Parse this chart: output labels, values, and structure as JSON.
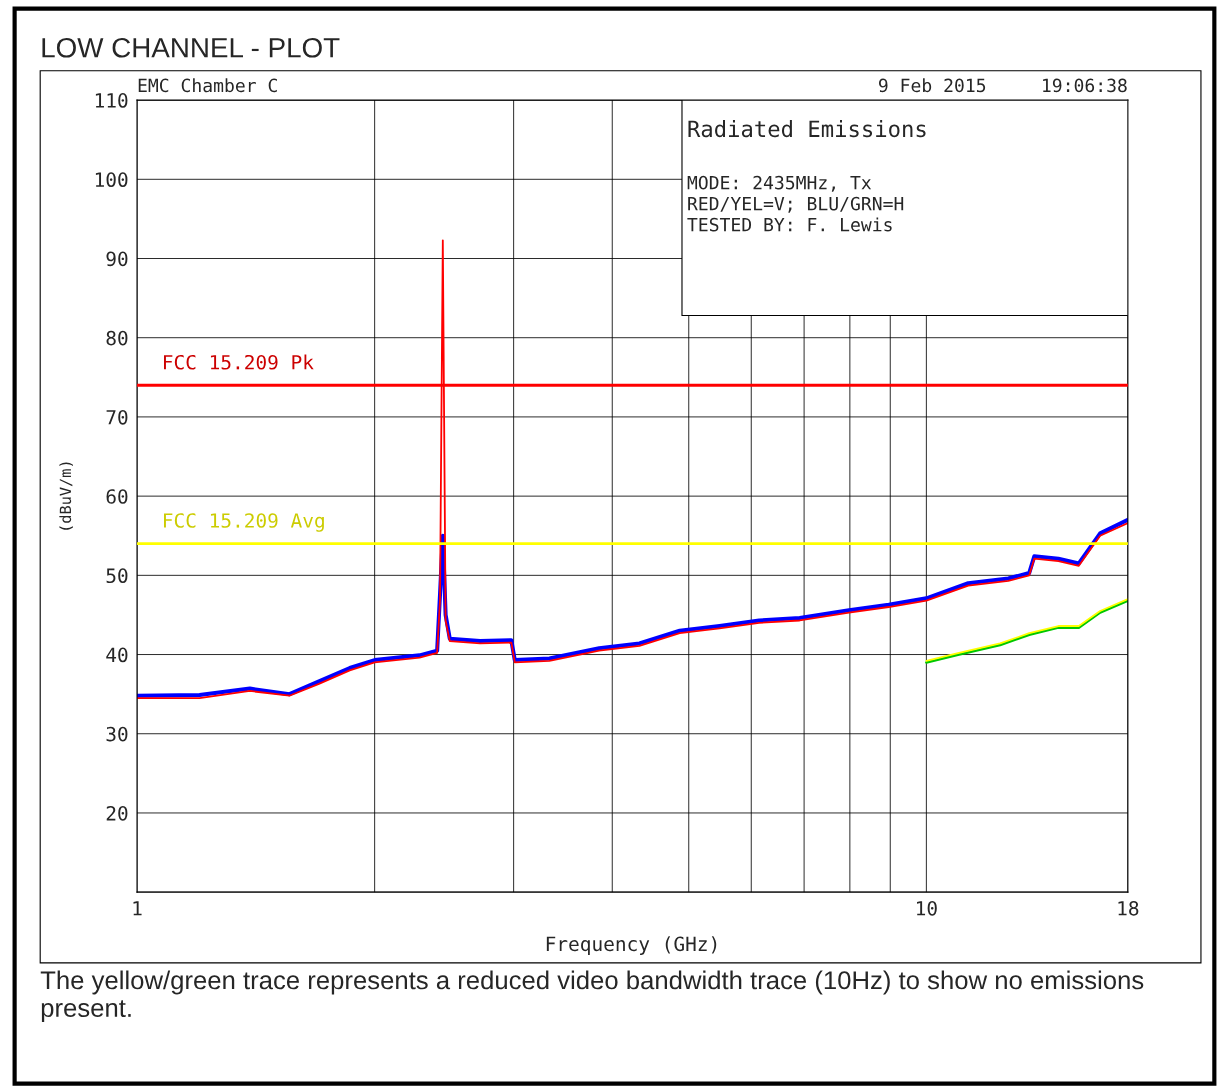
{
  "chart_data": {
    "type": "line",
    "title": "LOW CHANNEL - PLOT",
    "subtitle": "EMC Chamber C",
    "xlabel": "Frequency (GHz)",
    "ylabel": "(dBuV/m)",
    "log": "x",
    "xlim": [
      1,
      18
    ],
    "ylim": [
      10,
      110
    ],
    "xticks": [
      1,
      {
        "value": 2,
        "label": null
      },
      {
        "value": 3,
        "label": null
      },
      {
        "value": 4,
        "label": null
      },
      {
        "value": 5,
        "label": null
      },
      {
        "value": 6,
        "label": null
      },
      {
        "value": 7,
        "label": null
      },
      {
        "value": 8,
        "label": null
      },
      {
        "value": 9,
        "label": null
      },
      10,
      18
    ],
    "yticks": [
      {
        "value": 10,
        "label": null
      },
      20,
      30,
      40,
      50,
      60,
      70,
      80,
      90,
      100,
      110
    ],
    "grid": true,
    "series": [
      {
        "color": "#0000ff",
        "x": [
          1,
          1.2,
          1.39,
          1.56,
          1.7,
          1.86,
          2.0,
          2.28,
          2.4,
          2.42,
          2.44,
          2.46,
          2.49,
          2.72,
          2.98,
          3.01,
          3.33,
          3.85,
          4.33,
          4.87,
          5.47,
          6.14,
          6.91,
          7.98,
          8.96,
          10,
          11.3,
          12.7,
          13.5,
          13.7,
          14.7,
          15.6,
          16.6,
          18
        ],
        "values": [
          34.8,
          34.9,
          35.7,
          35.0,
          36.6,
          38.3,
          39.3,
          39.9,
          40.5,
          47.5,
          55.0,
          45.0,
          42.0,
          41.7,
          41.8,
          39.3,
          39.5,
          40.8,
          41.4,
          43.0,
          43.6,
          44.3,
          44.6,
          45.6,
          46.3,
          47.1,
          49.0,
          49.6,
          50.3,
          52.4,
          52.1,
          51.5,
          55.3,
          57.0
        ]
      },
      {
        "color": "#ff0000",
        "x": [
          1,
          1.2,
          1.39,
          1.56,
          1.7,
          1.86,
          2.0,
          2.28,
          2.4,
          2.42,
          2.44,
          2.46,
          2.49,
          2.72,
          2.98,
          3.01,
          3.33,
          3.85,
          4.33,
          4.87,
          5.47,
          6.14,
          6.91,
          7.98,
          8.96,
          10,
          11.3,
          12.7,
          13.5,
          13.7,
          14.7,
          15.6,
          16.6,
          18
        ],
        "values": [
          34.5,
          34.5,
          35.4,
          34.8,
          36.3,
          38.0,
          39.0,
          39.6,
          40.2,
          46.8,
          92.3,
          44.3,
          41.7,
          41.4,
          41.5,
          39.0,
          39.2,
          40.5,
          41.1,
          42.7,
          43.3,
          44.0,
          44.3,
          45.3,
          46.0,
          46.8,
          48.7,
          49.3,
          50.0,
          52.1,
          51.8,
          51.2,
          55.0,
          56.6
        ]
      },
      {
        "color": "#00c800",
        "x": [
          10,
          11.0,
          12.4,
          13.5,
          14.7,
          15.6,
          16.6,
          18
        ],
        "values": [
          39.0,
          40.0,
          41.2,
          42.5,
          43.4,
          43.4,
          45.3,
          46.8
        ]
      },
      {
        "color": "#ffff00",
        "x": [
          10,
          11.0,
          12.4,
          13.5,
          14.7,
          15.6,
          16.6,
          18
        ],
        "values": [
          39.2,
          40.2,
          41.4,
          42.7,
          43.6,
          43.6,
          45.5,
          47.0
        ]
      }
    ],
    "ref_lines": [
      {
        "axis": "y",
        "value": 74,
        "label": "FCC 15.209 Pk",
        "color": "#ff0000"
      },
      {
        "axis": "y",
        "value": 54,
        "label": "FCC 15.209 Avg",
        "color": "#ffff00"
      }
    ],
    "annotations": [
      "9 Feb 2015",
      "19:06:38",
      "Radiated Emissions",
      "MODE: 2435MHz, Tx",
      "RED/YEL=V; BLU/GRN=H",
      "TESTED BY: F. Lewis",
      "The yellow/green trace represents a reduced video bandwidth trace (10Hz) to show no emissions present."
    ]
  }
}
